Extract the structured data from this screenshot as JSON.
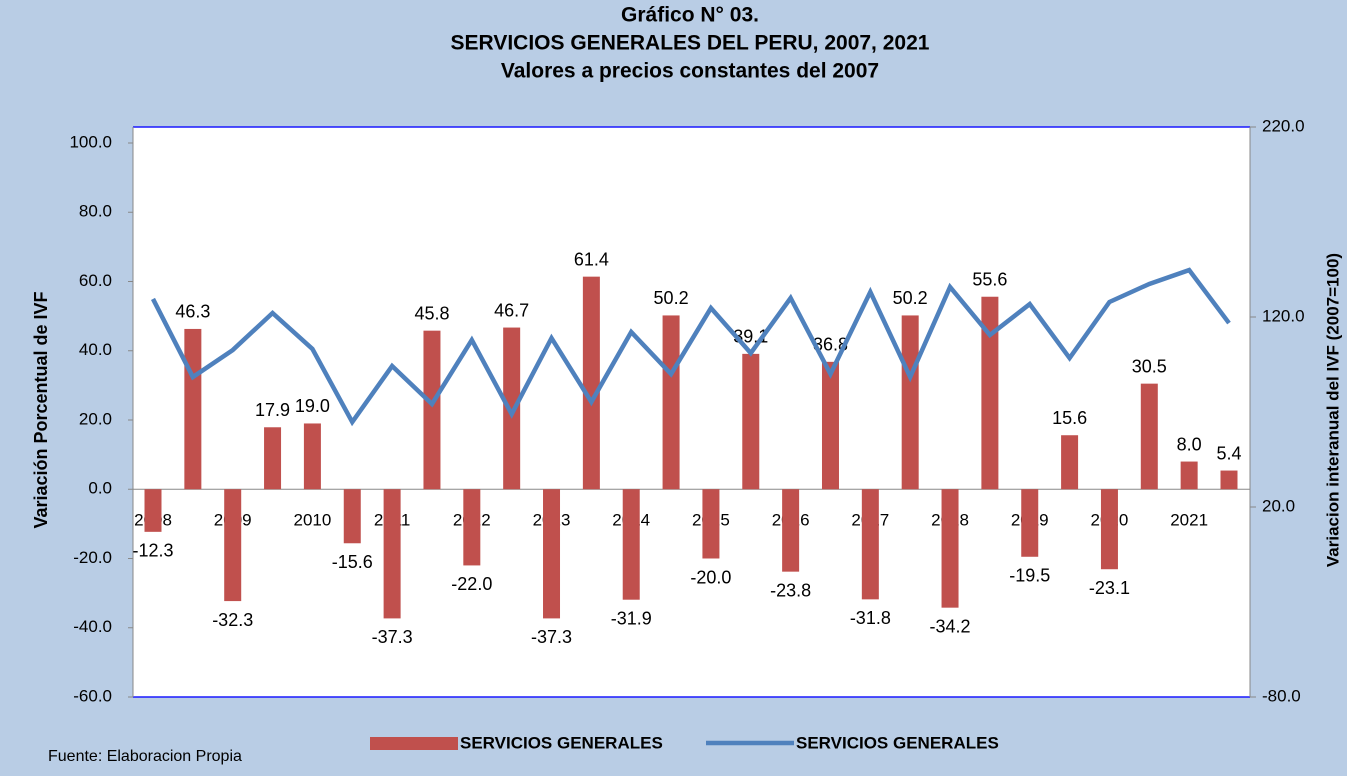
{
  "chart_data": {
    "type": "bar",
    "title": "Gráfico N° 03.",
    "subtitle": [
      "SERVICIOS GENERALES DEL PERU, 2007, 2021",
      "Valores a precios constantes del 2007"
    ],
    "y_label": "Variación Porcentual de IVF",
    "y2_label": "Variacion interanual del  IVF  (2007=100)",
    "source": "Fuente: Elaboracion Propia",
    "categories": [
      "2008",
      null,
      "2009",
      null,
      "2010",
      null,
      "2011",
      null,
      "2012",
      null,
      "2013",
      null,
      "2014",
      null,
      "2015",
      null,
      "2016",
      null,
      "2017",
      null,
      "2018",
      null,
      "2019",
      null,
      "2020",
      null,
      "2021",
      null
    ],
    "series": [
      {
        "name": "SERVICIOS GENERALES",
        "type": "bar",
        "color": "#c0504d",
        "values": [
          -12.3,
          46.3,
          -32.3,
          17.9,
          19.0,
          -15.6,
          -37.3,
          45.8,
          -22.0,
          46.7,
          -37.3,
          61.4,
          -31.9,
          50.2,
          -20.0,
          39.1,
          -23.8,
          36.8,
          -31.8,
          50.2,
          -34.2,
          55.6,
          -19.5,
          15.6,
          -23.1,
          30.5,
          8.0,
          5.4
        ],
        "value_labels": [
          "-12.3",
          "46.3",
          "-32.3",
          "17.9",
          "19.0",
          "-15.6",
          "-37.3",
          "45.8",
          "-22.0",
          "46.7",
          "-37.3",
          "61.4",
          "-31.9",
          "50.2",
          "-20.0",
          "39.1",
          "-23.8",
          "36.8",
          "-31.8",
          "50.2",
          "-34.2",
          "55.6",
          "-19.5",
          "15.6",
          "-23.1",
          "30.5",
          "8.0",
          "5.4"
        ]
      },
      {
        "name": "SERVICIOS GENERALES",
        "type": "line",
        "axis": "y2",
        "color": "#4f81bd",
        "values": [
          129.5,
          88.4,
          102.6,
          122.1,
          103.2,
          64.7,
          94.2,
          74.2,
          107.9,
          68.9,
          108.9,
          75.3,
          112.1,
          90.0,
          124.7,
          101.0,
          130.0,
          90.0,
          133.2,
          88.4,
          135.8,
          110.5,
          126.8,
          98.4,
          127.9,
          137.4,
          144.7,
          116.8
        ]
      }
    ],
    "ylim": [
      -60,
      100
    ],
    "yticks": [
      {
        "value": -60,
        "label": "-60.0"
      },
      {
        "value": -40,
        "label": "-40.0"
      },
      {
        "value": -20,
        "label": "-20.0"
      },
      {
        "value": 0,
        "label": "0.0"
      },
      {
        "value": 20,
        "label": "20.0"
      },
      {
        "value": 40,
        "label": "40.0"
      },
      {
        "value": 60,
        "label": "60.0"
      },
      {
        "value": 80,
        "label": "80.0"
      },
      {
        "value": 100,
        "label": "100.0"
      }
    ],
    "y2lim": [
      -80,
      220
    ],
    "y2ticks": [
      {
        "value": -80,
        "label": "-80.0"
      },
      {
        "value": 20,
        "label": "20.0"
      },
      {
        "value": 120,
        "label": "120.0"
      },
      {
        "value": 220,
        "label": "220.0"
      }
    ],
    "grid": false
  }
}
